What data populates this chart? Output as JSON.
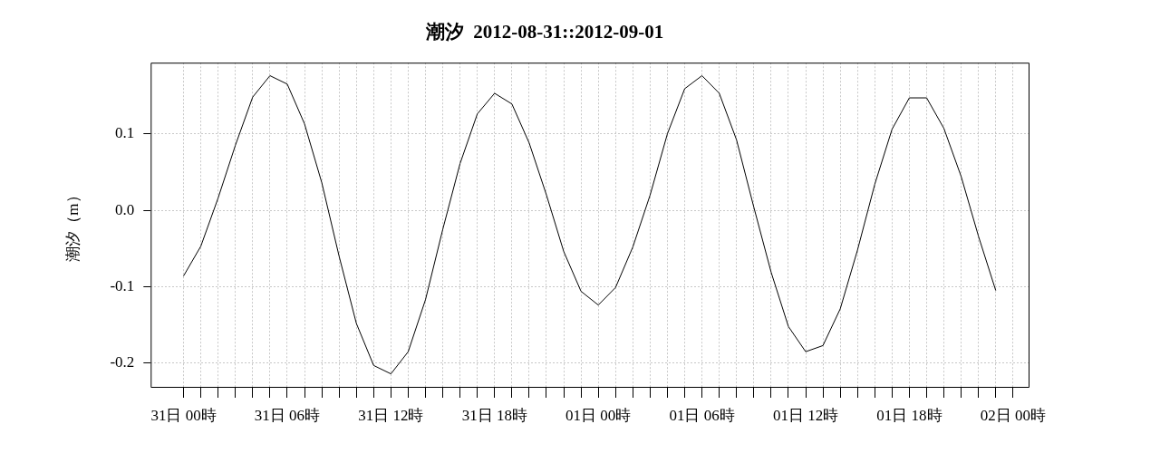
{
  "chart_data": {
    "type": "line",
    "title": "潮汐  2012-08-31::2012-09-01",
    "ylabel": "潮汐（m）",
    "x": [
      "2012-08-31T00:00",
      "2012-08-31T01:00",
      "2012-08-31T02:00",
      "2012-08-31T03:00",
      "2012-08-31T04:00",
      "2012-08-31T05:00",
      "2012-08-31T06:00",
      "2012-08-31T07:00",
      "2012-08-31T08:00",
      "2012-08-31T09:00",
      "2012-08-31T10:00",
      "2012-08-31T11:00",
      "2012-08-31T12:00",
      "2012-08-31T13:00",
      "2012-08-31T14:00",
      "2012-08-31T15:00",
      "2012-08-31T16:00",
      "2012-08-31T17:00",
      "2012-08-31T18:00",
      "2012-08-31T19:00",
      "2012-08-31T20:00",
      "2012-08-31T21:00",
      "2012-08-31T22:00",
      "2012-08-31T23:00",
      "2012-09-01T00:00",
      "2012-09-01T01:00",
      "2012-09-01T02:00",
      "2012-09-01T03:00",
      "2012-09-01T04:00",
      "2012-09-01T05:00",
      "2012-09-01T06:00",
      "2012-09-01T07:00",
      "2012-09-01T08:00",
      "2012-09-01T09:00",
      "2012-09-01T10:00",
      "2012-09-01T11:00",
      "2012-09-01T12:00",
      "2012-09-01T13:00",
      "2012-09-01T14:00",
      "2012-09-01T15:00",
      "2012-09-01T16:00",
      "2012-09-01T17:00",
      "2012-09-01T18:00",
      "2012-09-01T19:00",
      "2012-09-01T20:00",
      "2012-09-01T21:00",
      "2012-09-01T22:00",
      "2012-09-01T23:00"
    ],
    "series": [
      {
        "color": "#000000",
        "values": [
          -0.086,
          -0.047,
          0.016,
          0.085,
          0.148,
          0.176,
          0.165,
          0.113,
          0.036,
          -0.06,
          -0.148,
          -0.203,
          -0.214,
          -0.185,
          -0.117,
          -0.025,
          0.061,
          0.126,
          0.153,
          0.139,
          0.088,
          0.02,
          -0.054,
          -0.106,
          -0.124,
          -0.101,
          -0.048,
          0.02,
          0.1,
          0.159,
          0.176,
          0.153,
          0.092,
          0.004,
          -0.081,
          -0.152,
          -0.185,
          -0.177,
          -0.129,
          -0.052,
          0.034,
          0.106,
          0.147,
          0.147,
          0.107,
          0.044,
          -0.034,
          -0.105
        ]
      }
    ],
    "xlim": [
      "2012-08-30T22:06",
      "2012-09-02T00:54"
    ],
    "xticks": [
      {
        "value": "2012-08-31T00:00",
        "label": "31日 00時"
      },
      {
        "value": "2012-08-31T01:00",
        "label": null
      },
      {
        "value": "2012-08-31T02:00",
        "label": null
      },
      {
        "value": "2012-08-31T03:00",
        "label": null
      },
      {
        "value": "2012-08-31T04:00",
        "label": null
      },
      {
        "value": "2012-08-31T05:00",
        "label": null
      },
      {
        "value": "2012-08-31T06:00",
        "label": "31日 06時"
      },
      {
        "value": "2012-08-31T07:00",
        "label": null
      },
      {
        "value": "2012-08-31T08:00",
        "label": null
      },
      {
        "value": "2012-08-31T09:00",
        "label": null
      },
      {
        "value": "2012-08-31T10:00",
        "label": null
      },
      {
        "value": "2012-08-31T11:00",
        "label": null
      },
      {
        "value": "2012-08-31T12:00",
        "label": "31日 12時"
      },
      {
        "value": "2012-08-31T13:00",
        "label": null
      },
      {
        "value": "2012-08-31T14:00",
        "label": null
      },
      {
        "value": "2012-08-31T15:00",
        "label": null
      },
      {
        "value": "2012-08-31T16:00",
        "label": null
      },
      {
        "value": "2012-08-31T17:00",
        "label": null
      },
      {
        "value": "2012-08-31T18:00",
        "label": "31日 18時"
      },
      {
        "value": "2012-08-31T19:00",
        "label": null
      },
      {
        "value": "2012-08-31T20:00",
        "label": null
      },
      {
        "value": "2012-08-31T21:00",
        "label": null
      },
      {
        "value": "2012-08-31T22:00",
        "label": null
      },
      {
        "value": "2012-08-31T23:00",
        "label": null
      },
      {
        "value": "2012-09-01T00:00",
        "label": "01日 00時"
      },
      {
        "value": "2012-09-01T01:00",
        "label": null
      },
      {
        "value": "2012-09-01T02:00",
        "label": null
      },
      {
        "value": "2012-09-01T03:00",
        "label": null
      },
      {
        "value": "2012-09-01T04:00",
        "label": null
      },
      {
        "value": "2012-09-01T05:00",
        "label": null
      },
      {
        "value": "2012-09-01T06:00",
        "label": "01日 06時"
      },
      {
        "value": "2012-09-01T07:00",
        "label": null
      },
      {
        "value": "2012-09-01T08:00",
        "label": null
      },
      {
        "value": "2012-09-01T09:00",
        "label": null
      },
      {
        "value": "2012-09-01T10:00",
        "label": null
      },
      {
        "value": "2012-09-01T11:00",
        "label": null
      },
      {
        "value": "2012-09-01T12:00",
        "label": "01日 12時"
      },
      {
        "value": "2012-09-01T13:00",
        "label": null
      },
      {
        "value": "2012-09-01T14:00",
        "label": null
      },
      {
        "value": "2012-09-01T15:00",
        "label": null
      },
      {
        "value": "2012-09-01T16:00",
        "label": null
      },
      {
        "value": "2012-09-01T17:00",
        "label": null
      },
      {
        "value": "2012-09-01T18:00",
        "label": "01日 18時"
      },
      {
        "value": "2012-09-01T19:00",
        "label": null
      },
      {
        "value": "2012-09-01T20:00",
        "label": null
      },
      {
        "value": "2012-09-01T21:00",
        "label": null
      },
      {
        "value": "2012-09-01T22:00",
        "label": null
      },
      {
        "value": "2012-09-01T23:00",
        "label": null
      },
      {
        "value": "2012-09-02T00:00",
        "label": "02日 00時"
      }
    ],
    "ylim": [
      -0.231,
      0.193
    ],
    "yticks": [
      {
        "value": -0.2,
        "label": "-0.2"
      },
      {
        "value": -0.1,
        "label": "-0.1"
      },
      {
        "value": 0,
        "label": "0.0"
      },
      {
        "value": 0.1,
        "label": "0.1"
      }
    ],
    "grid": true,
    "legend": false,
    "marker": "none",
    "line_style": "solid"
  }
}
